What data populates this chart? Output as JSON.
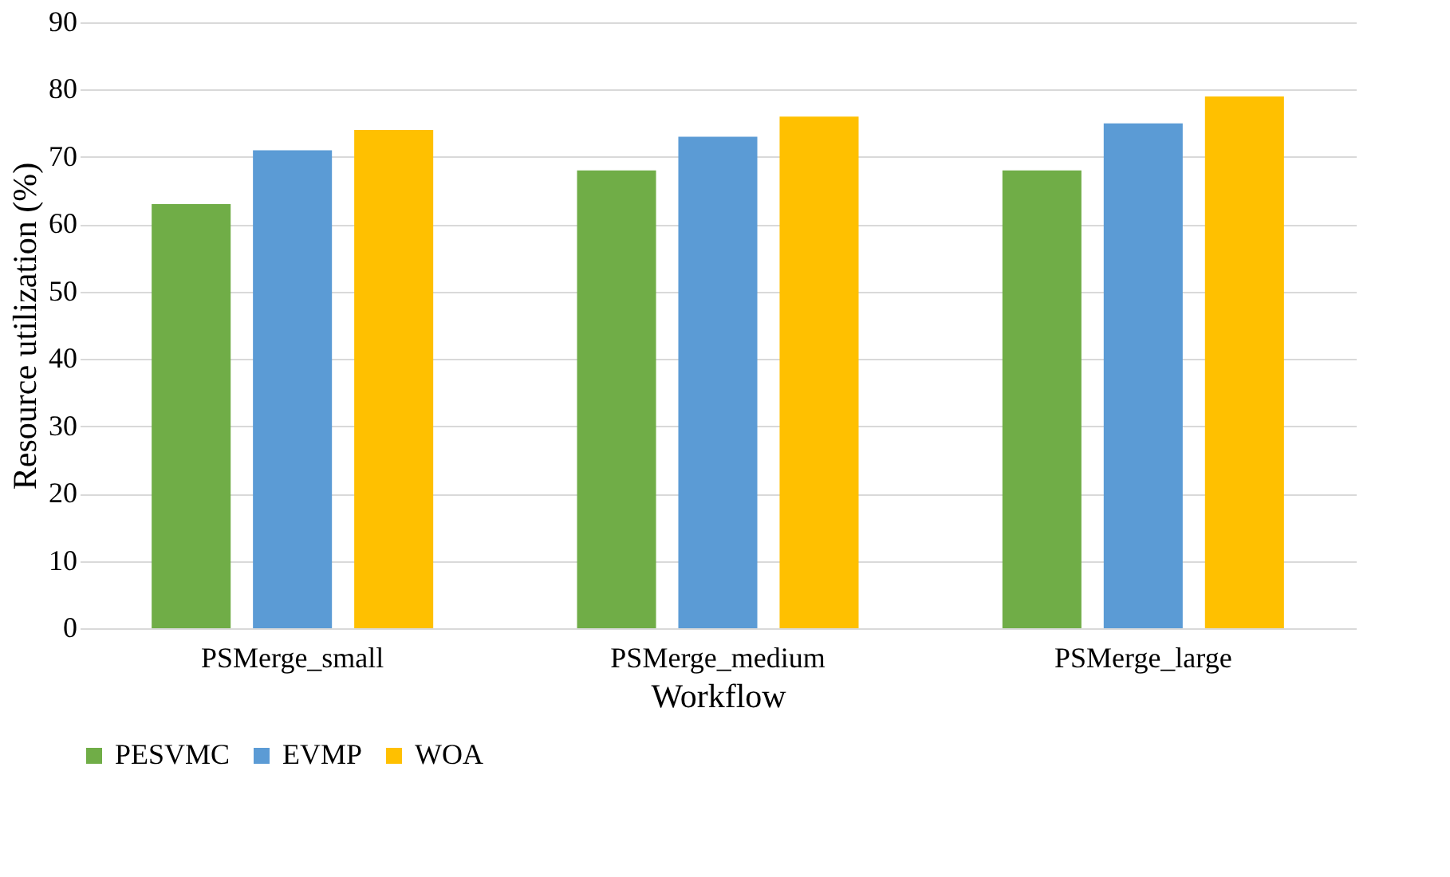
{
  "chart_data": {
    "type": "bar",
    "xlabel": "Workflow",
    "ylabel": "Resource utilization (%)",
    "categories": [
      "PSMerge_small",
      "PSMerge_medium",
      "PSMerge_large"
    ],
    "series": [
      {
        "name": "PESVMC",
        "color": "#70ad47",
        "values": [
          63,
          68,
          68
        ]
      },
      {
        "name": "EVMP",
        "color": "#5b9bd5",
        "values": [
          71,
          73,
          75
        ]
      },
      {
        "name": "WOA",
        "color": "#ffc000",
        "values": [
          74,
          76,
          79
        ]
      }
    ],
    "ylim": [
      0,
      90
    ],
    "yticks": [
      0,
      10,
      20,
      30,
      40,
      50,
      60,
      70,
      80,
      90
    ],
    "grid": "y",
    "legend": "bottom"
  }
}
